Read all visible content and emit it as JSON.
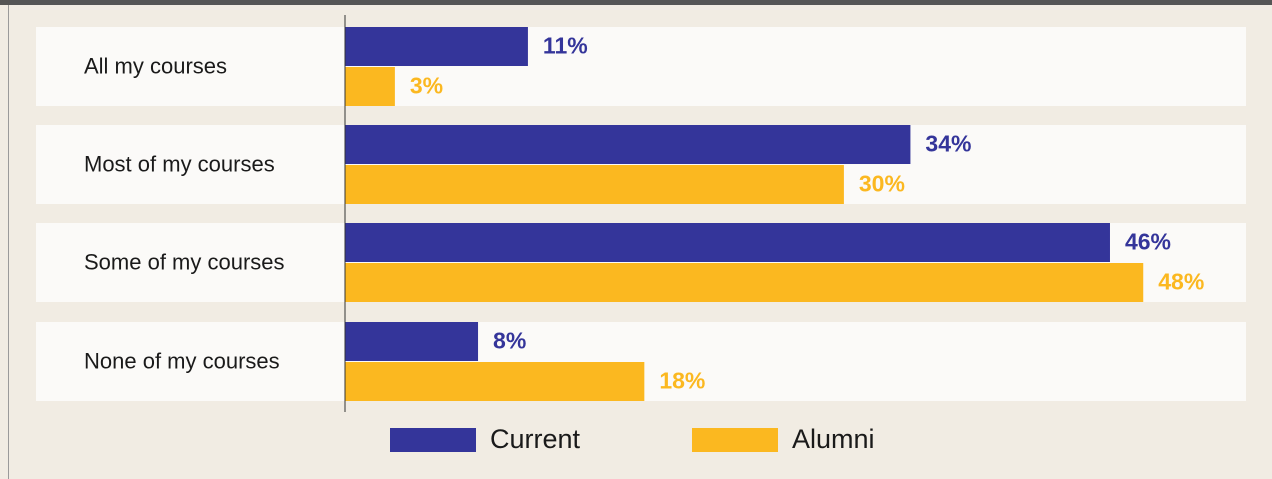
{
  "chart_data": {
    "type": "bar",
    "orientation": "horizontal",
    "categories": [
      "All my courses",
      "Most of my courses",
      "Some of my courses",
      "None of my courses"
    ],
    "series": [
      {
        "name": "Current",
        "color": "#34359a",
        "values": [
          11,
          34,
          46,
          8
        ],
        "value_labels": [
          "11%",
          "34%",
          "46%",
          "8%"
        ]
      },
      {
        "name": "Alumni",
        "color": "#fbb820",
        "values": [
          3,
          30,
          48,
          18
        ],
        "value_labels": [
          "3%",
          "30%",
          "48%",
          "18%"
        ]
      }
    ],
    "legend": "bottom"
  }
}
